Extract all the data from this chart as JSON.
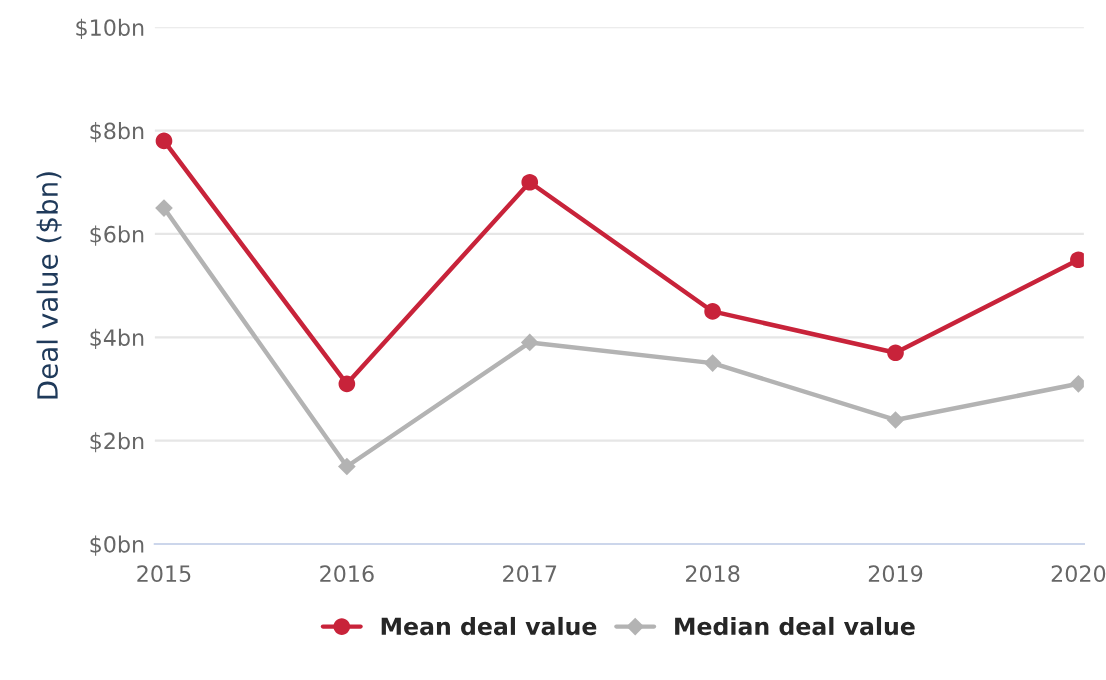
{
  "chart_data": {
    "type": "line",
    "ylabel": "Deal value ($bn)",
    "x": [
      2015,
      2016,
      2017,
      2018,
      2019,
      2020
    ],
    "series": [
      {
        "name": "Mean deal value",
        "color": "#c8233a",
        "marker": "circle",
        "values": [
          7.8,
          3.1,
          7.0,
          4.5,
          3.7,
          5.5
        ]
      },
      {
        "name": "Median deal value",
        "color": "#b3b3b3",
        "marker": "diamond",
        "values": [
          6.5,
          1.5,
          3.9,
          3.5,
          2.4,
          3.1
        ]
      }
    ],
    "xlim": [
      2014.95,
      2020.03
    ],
    "xticks": [
      2015,
      2016,
      2017,
      2018,
      2019,
      2020
    ],
    "ylim": [
      0,
      10
    ],
    "yticks": [
      {
        "value": 0,
        "label": "$0bn"
      },
      {
        "value": 2,
        "label": "$2bn"
      },
      {
        "value": 4,
        "label": "$4bn"
      },
      {
        "value": 6,
        "label": "$6bn"
      },
      {
        "value": 8,
        "label": "$8bn"
      },
      {
        "value": 10,
        "label": "$10bn"
      }
    ],
    "grid": "y",
    "legend": "bottom",
    "line_style": "solid"
  }
}
